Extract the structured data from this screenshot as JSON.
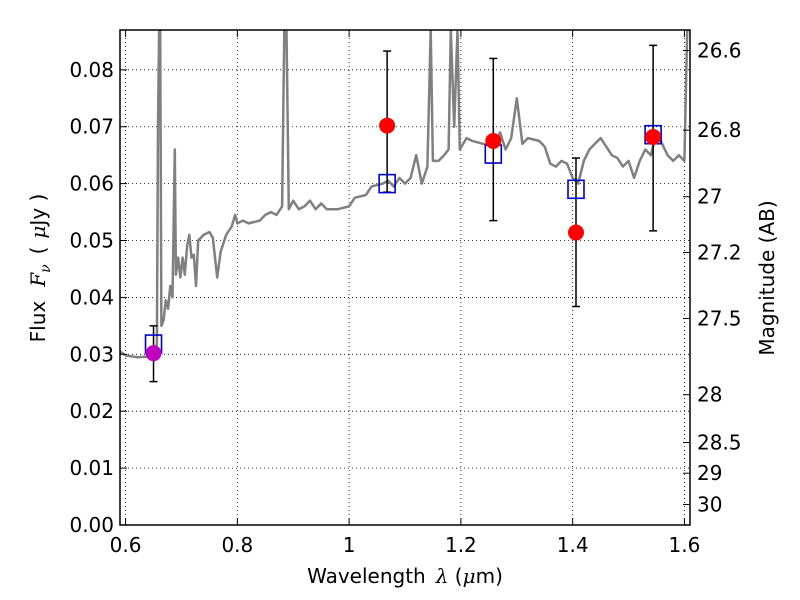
{
  "chart_data": {
    "type": "scatter",
    "xlabel_text": "Wavelength",
    "xlabel_symbol": "λ",
    "xlabel_unit_open": " (",
    "xlabel_unit_mu": "μ",
    "xlabel_unit_close": "m)",
    "ylabel_text": "Flux",
    "ylabel_symbol": "F",
    "ylabel_subscript": "ν",
    "ylabel_unit_open": "(",
    "ylabel_unit_mu": "μ",
    "ylabel_unit_close": "Jy )",
    "y2label": "Magnitude (AB)",
    "xlim": [
      0.59,
      1.61
    ],
    "ylim": [
      0.0,
      0.087
    ],
    "grid": true,
    "x_ticks": [
      {
        "value": 0.6,
        "label": "0.6"
      },
      {
        "value": 0.8,
        "label": "0.8"
      },
      {
        "value": 1.0,
        "label": "1"
      },
      {
        "value": 1.2,
        "label": "1.2"
      },
      {
        "value": 1.4,
        "label": "1.4"
      },
      {
        "value": 1.6,
        "label": "1.6"
      }
    ],
    "y_ticks": [
      {
        "value": 0.0,
        "label": "0.00"
      },
      {
        "value": 0.01,
        "label": "0.01"
      },
      {
        "value": 0.02,
        "label": "0.02"
      },
      {
        "value": 0.03,
        "label": "0.03"
      },
      {
        "value": 0.04,
        "label": "0.04"
      },
      {
        "value": 0.05,
        "label": "0.05"
      },
      {
        "value": 0.06,
        "label": "0.06"
      },
      {
        "value": 0.07,
        "label": "0.07"
      },
      {
        "value": 0.08,
        "label": "0.08"
      }
    ],
    "y2_ticks": [
      {
        "flux": 0.0834,
        "label": "26.6"
      },
      {
        "flux": 0.0694,
        "label": "26.8"
      },
      {
        "flux": 0.0577,
        "label": "27"
      },
      {
        "flux": 0.0479,
        "label": "27.2"
      },
      {
        "flux": 0.0363,
        "label": "27.5"
      },
      {
        "flux": 0.0229,
        "label": "28"
      },
      {
        "flux": 0.0145,
        "label": "28.5"
      },
      {
        "flux": 0.0091,
        "label": "29"
      },
      {
        "flux": 0.0036,
        "label": "30"
      }
    ],
    "spectrum": {
      "color": "#808080",
      "points": [
        [
          0.59,
          0.0305
        ],
        [
          0.6,
          0.0298
        ],
        [
          0.62,
          0.0295
        ],
        [
          0.64,
          0.0296
        ],
        [
          0.648,
          0.03
        ],
        [
          0.652,
          0.029
        ],
        [
          0.656,
          0.032
        ],
        [
          0.658,
          0.07
        ],
        [
          0.66,
          0.087
        ],
        [
          0.662,
          0.087
        ],
        [
          0.664,
          0.035
        ],
        [
          0.668,
          0.036
        ],
        [
          0.672,
          0.0395
        ],
        [
          0.676,
          0.038
        ],
        [
          0.68,
          0.042
        ],
        [
          0.684,
          0.04
        ],
        [
          0.688,
          0.066
        ],
        [
          0.69,
          0.044
        ],
        [
          0.694,
          0.047
        ],
        [
          0.698,
          0.0435
        ],
        [
          0.702,
          0.047
        ],
        [
          0.706,
          0.044
        ],
        [
          0.71,
          0.049
        ],
        [
          0.714,
          0.051
        ],
        [
          0.718,
          0.047
        ],
        [
          0.722,
          0.0475
        ],
        [
          0.726,
          0.042
        ],
        [
          0.73,
          0.05
        ],
        [
          0.74,
          0.051
        ],
        [
          0.75,
          0.0515
        ],
        [
          0.756,
          0.0505
        ],
        [
          0.76,
          0.047
        ],
        [
          0.764,
          0.0435
        ],
        [
          0.77,
          0.048
        ],
        [
          0.78,
          0.051
        ],
        [
          0.79,
          0.0525
        ],
        [
          0.796,
          0.0545
        ],
        [
          0.8,
          0.053
        ],
        [
          0.81,
          0.0535
        ],
        [
          0.82,
          0.053
        ],
        [
          0.84,
          0.0535
        ],
        [
          0.85,
          0.0545
        ],
        [
          0.86,
          0.055
        ],
        [
          0.87,
          0.0545
        ],
        [
          0.88,
          0.056
        ],
        [
          0.884,
          0.087
        ],
        [
          0.888,
          0.087
        ],
        [
          0.892,
          0.0555
        ],
        [
          0.9,
          0.057
        ],
        [
          0.91,
          0.0555
        ],
        [
          0.92,
          0.056
        ],
        [
          0.93,
          0.057
        ],
        [
          0.94,
          0.0555
        ],
        [
          0.95,
          0.0565
        ],
        [
          0.96,
          0.0555
        ],
        [
          0.98,
          0.0555
        ],
        [
          1.0,
          0.056
        ],
        [
          1.01,
          0.0575
        ],
        [
          1.03,
          0.058
        ],
        [
          1.04,
          0.0595
        ],
        [
          1.06,
          0.06
        ],
        [
          1.07,
          0.0605
        ],
        [
          1.08,
          0.0595
        ],
        [
          1.09,
          0.061
        ],
        [
          1.1,
          0.06
        ],
        [
          1.11,
          0.061
        ],
        [
          1.12,
          0.065
        ],
        [
          1.13,
          0.06
        ],
        [
          1.14,
          0.063
        ],
        [
          1.146,
          0.087
        ],
        [
          1.15,
          0.064
        ],
        [
          1.16,
          0.064
        ],
        [
          1.17,
          0.065
        ],
        [
          1.178,
          0.066
        ],
        [
          1.182,
          0.087
        ],
        [
          1.188,
          0.07
        ],
        [
          1.194,
          0.087
        ],
        [
          1.198,
          0.066
        ],
        [
          1.21,
          0.068
        ],
        [
          1.22,
          0.0675
        ],
        [
          1.24,
          0.067
        ],
        [
          1.26,
          0.0665
        ],
        [
          1.27,
          0.069
        ],
        [
          1.28,
          0.066
        ],
        [
          1.29,
          0.068
        ],
        [
          1.3,
          0.075
        ],
        [
          1.31,
          0.067
        ],
        [
          1.32,
          0.068
        ],
        [
          1.34,
          0.0675
        ],
        [
          1.35,
          0.0665
        ],
        [
          1.36,
          0.0635
        ],
        [
          1.37,
          0.063
        ],
        [
          1.38,
          0.064
        ],
        [
          1.39,
          0.0635
        ],
        [
          1.4,
          0.061
        ],
        [
          1.41,
          0.06
        ],
        [
          1.42,
          0.064
        ],
        [
          1.43,
          0.066
        ],
        [
          1.44,
          0.067
        ],
        [
          1.45,
          0.068
        ],
        [
          1.46,
          0.0665
        ],
        [
          1.47,
          0.065
        ],
        [
          1.48,
          0.0645
        ],
        [
          1.49,
          0.063
        ],
        [
          1.5,
          0.064
        ],
        [
          1.51,
          0.061
        ],
        [
          1.52,
          0.064
        ],
        [
          1.53,
          0.066
        ],
        [
          1.54,
          0.065
        ],
        [
          1.55,
          0.069
        ],
        [
          1.56,
          0.067
        ],
        [
          1.57,
          0.065
        ],
        [
          1.58,
          0.064
        ],
        [
          1.59,
          0.065
        ],
        [
          1.6,
          0.064
        ],
        [
          1.605,
          0.087
        ],
        [
          1.61,
          0.087
        ]
      ]
    },
    "observed": [
      {
        "x": 0.65,
        "y": 0.0302,
        "yerr_low": 0.0252,
        "yerr_high": 0.035,
        "color": "#bf00bf"
      },
      {
        "x": 1.068,
        "y": 0.0702,
        "yerr_low": 0.0585,
        "yerr_high": 0.0833,
        "color": "#ff0000"
      },
      {
        "x": 1.258,
        "y": 0.0675,
        "yerr_low": 0.0535,
        "yerr_high": 0.082,
        "color": "#ff0000"
      },
      {
        "x": 1.406,
        "y": 0.0514,
        "yerr_low": 0.0384,
        "yerr_high": 0.0645,
        "color": "#ff0000"
      },
      {
        "x": 1.544,
        "y": 0.0682,
        "yerr_low": 0.0517,
        "yerr_high": 0.0843,
        "color": "#ff0000"
      }
    ],
    "model": [
      {
        "x": 0.65,
        "y": 0.0318
      },
      {
        "x": 1.068,
        "y": 0.06
      },
      {
        "x": 1.258,
        "y": 0.0652
      },
      {
        "x": 1.406,
        "y": 0.059
      },
      {
        "x": 1.544,
        "y": 0.0686
      }
    ],
    "model_color": "#0000cc"
  }
}
